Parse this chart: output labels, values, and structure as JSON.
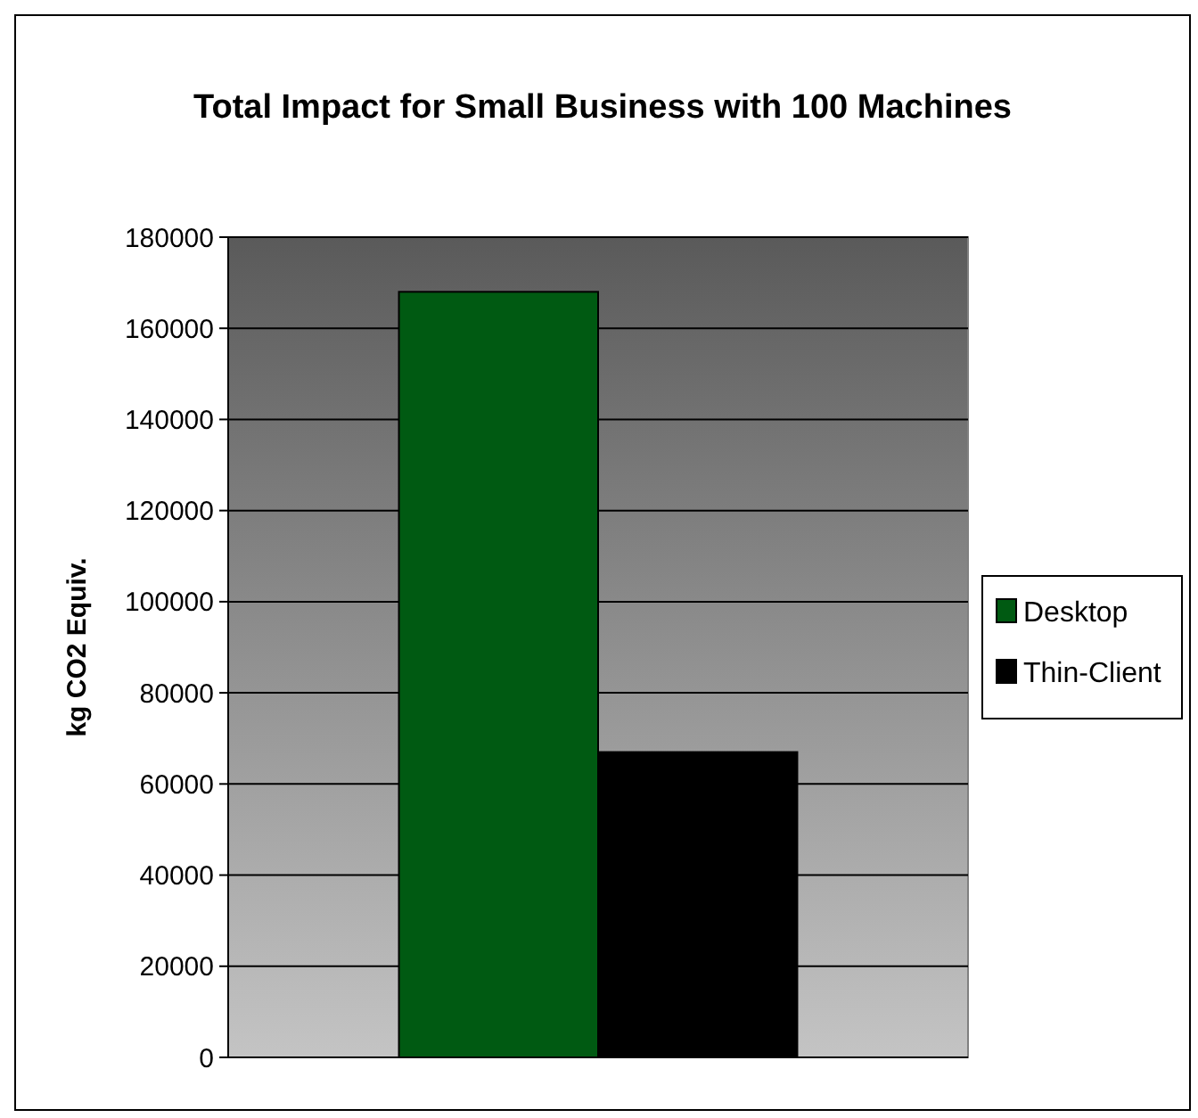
{
  "chart_data": {
    "type": "bar",
    "title": "Total Impact for Small Business with 100 Machines",
    "ylabel": "kg CO2 Equiv.",
    "categories": [
      null
    ],
    "series": [
      {
        "name": "Desktop",
        "color": "#005a12",
        "values": [
          168000
        ]
      },
      {
        "name": "Thin-Client",
        "color": "#000000",
        "values": [
          67000
        ]
      }
    ],
    "ylim": [
      0,
      180000
    ],
    "yticks": [
      0,
      20000,
      40000,
      60000,
      80000,
      100000,
      120000,
      140000,
      160000,
      180000
    ],
    "grid": "y",
    "legend": "right"
  }
}
